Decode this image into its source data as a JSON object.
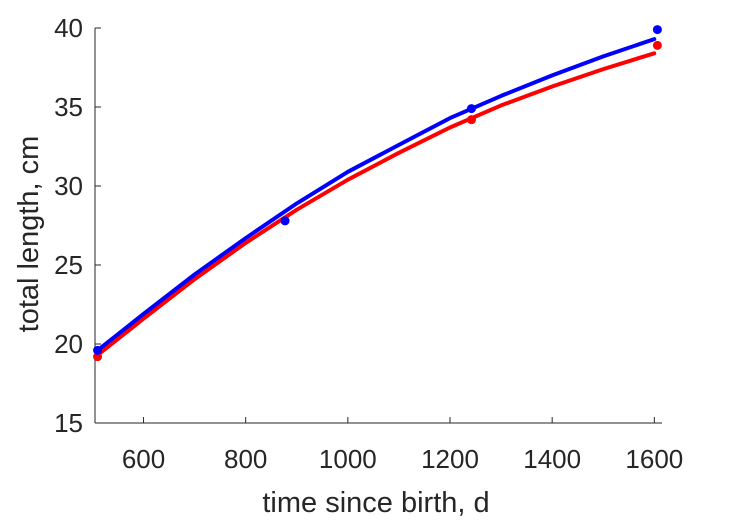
{
  "chart_data": {
    "type": "line",
    "xlabel": "time since birth, d",
    "ylabel": "total length, cm",
    "xlim": [
      505,
      1615
    ],
    "ylim": [
      15,
      40
    ],
    "xticks": [
      600,
      800,
      1000,
      1200,
      1400,
      1600
    ],
    "yticks": [
      15,
      20,
      25,
      30,
      35,
      40
    ],
    "grid": false,
    "series": [
      {
        "color": "#0000ff",
        "points": {
          "x": [
            510,
            877,
            1242,
            1606
          ],
          "y": [
            19.6,
            27.8,
            34.9,
            39.9
          ]
        },
        "curve": {
          "x": [
            510,
            600,
            700,
            800,
            900,
            1000,
            1100,
            1200,
            1300,
            1400,
            1500,
            1600
          ],
          "y": [
            19.6,
            21.9,
            24.4,
            26.7,
            28.9,
            30.9,
            32.6,
            34.3,
            35.7,
            37.0,
            38.2,
            39.3
          ]
        }
      },
      {
        "color": "#ff0000",
        "points": {
          "x": [
            510,
            877,
            1242,
            1606
          ],
          "y": [
            19.2,
            27.8,
            34.2,
            38.9
          ]
        },
        "curve": {
          "x": [
            510,
            600,
            700,
            800,
            900,
            1000,
            1100,
            1200,
            1300,
            1400,
            1500,
            1600
          ],
          "y": [
            19.3,
            21.6,
            24.1,
            26.4,
            28.5,
            30.4,
            32.1,
            33.7,
            35.1,
            36.3,
            37.4,
            38.4
          ]
        }
      }
    ]
  }
}
